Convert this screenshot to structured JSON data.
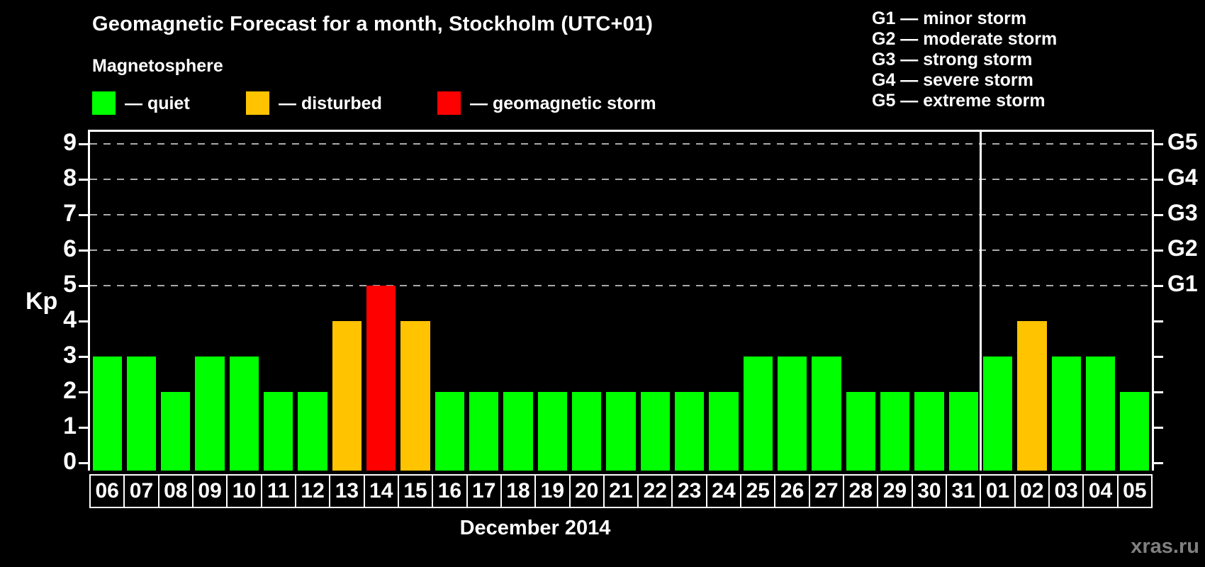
{
  "title": "Geomagnetic Forecast for a month, Stockholm (UTC+01)",
  "legend": {
    "heading": "Magnetosphere",
    "items": [
      {
        "key": "quiet",
        "label": "— quiet",
        "color": "#00ff00"
      },
      {
        "key": "disturbed",
        "label": "— disturbed",
        "color": "#ffc300"
      },
      {
        "key": "storm",
        "label": "— geomagnetic storm",
        "color": "#ff0000"
      }
    ]
  },
  "storm_scale": [
    {
      "level": "G1",
      "label": "G1 — minor storm"
    },
    {
      "level": "G2",
      "label": "G2 — moderate storm"
    },
    {
      "level": "G3",
      "label": "G3 — strong storm"
    },
    {
      "level": "G4",
      "label": "G4 — severe storm"
    },
    {
      "level": "G5",
      "label": "G5 — extreme storm"
    }
  ],
  "watermark": "xras.ru",
  "chart_data": {
    "type": "bar",
    "title": "Geomagnetic Forecast for a month, Stockholm (UTC+01)",
    "xlabel": "December 2014",
    "ylabel": "Kp",
    "ylim": [
      0,
      9.6
    ],
    "yticks": [
      0,
      1,
      2,
      3,
      4,
      5,
      6,
      7,
      8,
      9
    ],
    "gridlines_at": [
      5,
      6,
      7,
      8,
      9
    ],
    "grid": "dashed horizontal at storm levels only",
    "legend_position": "top",
    "right_axis_labels": {
      "5": "G1",
      "6": "G2",
      "7": "G3",
      "8": "G4",
      "9": "G5"
    },
    "categories": [
      "06",
      "07",
      "08",
      "09",
      "10",
      "11",
      "12",
      "13",
      "14",
      "15",
      "16",
      "17",
      "18",
      "19",
      "20",
      "21",
      "22",
      "23",
      "24",
      "25",
      "26",
      "27",
      "28",
      "29",
      "30",
      "31",
      "01",
      "02",
      "03",
      "04",
      "05"
    ],
    "values": [
      3,
      3,
      2,
      3,
      3,
      2,
      2,
      4,
      5,
      4,
      2,
      2,
      2,
      2,
      2,
      2,
      2,
      2,
      2,
      3,
      3,
      3,
      2,
      2,
      2,
      2,
      3,
      4,
      3,
      3,
      2
    ],
    "statuses": [
      "quiet",
      "quiet",
      "quiet",
      "quiet",
      "quiet",
      "quiet",
      "quiet",
      "disturbed",
      "storm",
      "disturbed",
      "quiet",
      "quiet",
      "quiet",
      "quiet",
      "quiet",
      "quiet",
      "quiet",
      "quiet",
      "quiet",
      "quiet",
      "quiet",
      "quiet",
      "quiet",
      "quiet",
      "quiet",
      "quiet",
      "quiet",
      "disturbed",
      "quiet",
      "quiet",
      "quiet"
    ],
    "colors": {
      "quiet": "#00ff00",
      "disturbed": "#ffc300",
      "storm": "#ff0000"
    },
    "month_divider_after_index": 25
  }
}
